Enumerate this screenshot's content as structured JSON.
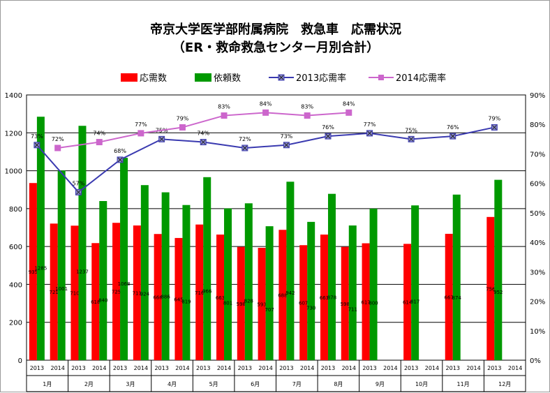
{
  "title": "帝京大学医学部附属病院　救急車　応需状況",
  "subtitle": "（ER・救命救急センター月別合計）",
  "chart_data": {
    "type": "bar",
    "months": [
      "1月",
      "2月",
      "3月",
      "4月",
      "5月",
      "6月",
      "7月",
      "8月",
      "9月",
      "10月",
      "11月",
      "12月"
    ],
    "years": [
      "2013",
      "2014"
    ],
    "series": [
      {
        "name": "応需数",
        "color": "#ff0000",
        "values": {
          "2013": [
            935,
            710,
            725,
            666,
            716,
            598,
            688,
            663,
            617,
            614,
            667,
            756
          ],
          "2014": [
            721,
            618,
            711,
            645,
            663,
            593,
            607,
            598,
            null,
            null,
            null,
            null
          ]
        }
      },
      {
        "name": "依頼数",
        "color": "#009900",
        "values": {
          "2013": [
            1285,
            1237,
            1068,
            886,
            966,
            828,
            942,
            878,
            800,
            817,
            874,
            952
          ],
          "2014": [
            1001,
            840,
            924,
            819,
            801,
            707,
            730,
            711,
            null,
            null,
            null,
            null
          ]
        }
      },
      {
        "name": "2013応需率",
        "color": "#3a3ab0",
        "values": [
          73,
          57,
          68,
          75,
          74,
          72,
          73,
          76,
          77,
          75,
          76,
          79
        ]
      },
      {
        "name": "2014応需率",
        "color": "#cc66cc",
        "values": [
          72,
          74,
          77,
          79,
          83,
          84,
          83,
          84,
          null,
          null,
          null,
          null
        ]
      }
    ],
    "ylim": [
      0,
      1400
    ],
    "y2lim": [
      0,
      90
    ],
    "yticks": [
      "0",
      "200",
      "400",
      "600",
      "800",
      "1000",
      "1200",
      "1400"
    ],
    "y2ticks": [
      "0%",
      "10%",
      "20%",
      "30%",
      "40%",
      "50%",
      "60%",
      "70%",
      "80%",
      "90%"
    ],
    "legend_position": "top",
    "grid": true
  }
}
